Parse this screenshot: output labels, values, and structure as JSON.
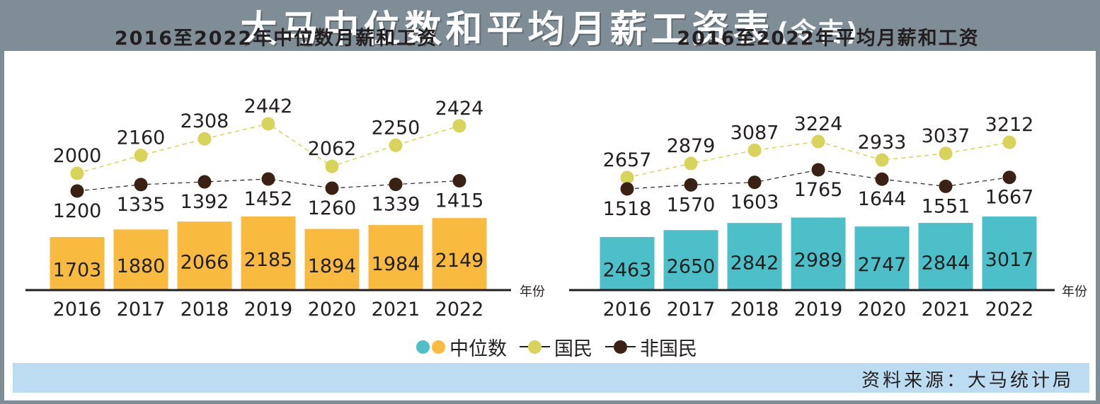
{
  "header": {
    "title": "大马中位数和平均月薪工资表",
    "subtitle": "(令吉)"
  },
  "colors": {
    "median_left": "#f8bb3f",
    "median_right": "#4cbfc8",
    "citizen": "#d8d35a",
    "non_citizen": "#3b2114",
    "header_bg": "#7f8e96",
    "source_bg": "#bcdcf1"
  },
  "legend": {
    "median": "中位数",
    "citizen": "国民",
    "non_citizen": "非国民"
  },
  "source": "资料来源：大马统计局",
  "chart_data": [
    {
      "type": "bar",
      "title": "2016至2022年中位数月薪和工资",
      "xlabel": "年份",
      "categories": [
        "2016",
        "2017",
        "2018",
        "2019",
        "2020",
        "2021",
        "2022"
      ],
      "series": [
        {
          "name": "中位数",
          "type": "bar",
          "values": [
            1703,
            1880,
            2066,
            2185,
            1894,
            1984,
            2149
          ]
        },
        {
          "name": "国民",
          "type": "line",
          "values": [
            2000,
            2160,
            2308,
            2442,
            2062,
            2250,
            2424
          ]
        },
        {
          "name": "非国民",
          "type": "line",
          "values": [
            1200,
            1335,
            1392,
            1452,
            1260,
            1339,
            1415
          ]
        }
      ]
    },
    {
      "type": "bar",
      "title": "2016至2022年平均月薪和工资",
      "xlabel": "年份",
      "categories": [
        "2016",
        "2017",
        "2018",
        "2019",
        "2020",
        "2021",
        "2022"
      ],
      "series": [
        {
          "name": "中位数",
          "type": "bar",
          "values": [
            2463,
            2650,
            2842,
            2989,
            2747,
            2844,
            3017
          ]
        },
        {
          "name": "国民",
          "type": "line",
          "values": [
            2657,
            2879,
            3087,
            3224,
            2933,
            3037,
            3212
          ]
        },
        {
          "name": "非国民",
          "type": "line",
          "values": [
            1518,
            1570,
            1603,
            1765,
            1644,
            1551,
            1667
          ]
        }
      ]
    }
  ]
}
